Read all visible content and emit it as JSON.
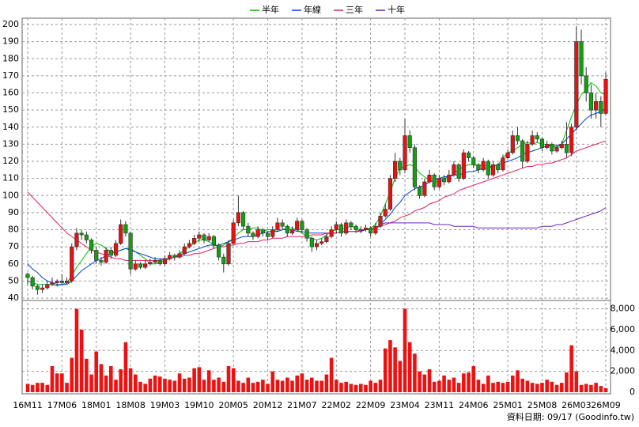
{
  "chart_data": {
    "type": "candlestick",
    "legend": "top",
    "grid": true,
    "up_color": "#e81010",
    "down_color": "#10a010",
    "ylim": [
      40,
      200
    ],
    "yticks": [
      40,
      50,
      60,
      70,
      80,
      90,
      100,
      110,
      120,
      130,
      140,
      150,
      160,
      170,
      180,
      190,
      200
    ],
    "categories": [
      "16M11",
      null,
      null,
      null,
      null,
      null,
      null,
      "17M06",
      null,
      null,
      null,
      null,
      null,
      null,
      "18M01",
      null,
      null,
      null,
      null,
      null,
      null,
      "18M08",
      null,
      null,
      null,
      null,
      null,
      null,
      "19M03",
      null,
      null,
      null,
      null,
      null,
      null,
      "19M10",
      null,
      null,
      null,
      null,
      null,
      null,
      "20M05",
      null,
      null,
      null,
      null,
      null,
      null,
      "20M12",
      null,
      null,
      null,
      null,
      null,
      null,
      "21M07",
      null,
      null,
      null,
      null,
      null,
      null,
      "22M02",
      null,
      null,
      null,
      null,
      null,
      null,
      "22M09",
      null,
      null,
      null,
      null,
      null,
      null,
      "23M04",
      null,
      null,
      null,
      null,
      null,
      null,
      "23M11",
      null,
      null,
      null,
      null,
      null,
      null,
      "24M06",
      null,
      null,
      null,
      null,
      null,
      null,
      "25M01",
      null,
      null,
      null,
      null,
      null,
      null,
      "25M08",
      null,
      null,
      null,
      null,
      null,
      null,
      "26M03",
      null,
      null,
      null,
      null,
      null,
      "26M09"
    ],
    "ohlc": [
      [
        54,
        55,
        48,
        52
      ],
      [
        52,
        53,
        45,
        47
      ],
      [
        47,
        48,
        42,
        45
      ],
      [
        45,
        48,
        43,
        46
      ],
      [
        46,
        50,
        45,
        48
      ],
      [
        48,
        52,
        47,
        49
      ],
      [
        49,
        51,
        47,
        50
      ],
      [
        50,
        54,
        48,
        49
      ],
      [
        49,
        52,
        48,
        50
      ],
      [
        50,
        72,
        49,
        70
      ],
      [
        70,
        81,
        68,
        78
      ],
      [
        78,
        80,
        74,
        77
      ],
      [
        77,
        79,
        72,
        74
      ],
      [
        74,
        75,
        66,
        68
      ],
      [
        68,
        70,
        60,
        62
      ],
      [
        62,
        64,
        59,
        61
      ],
      [
        61,
        70,
        60,
        68
      ],
      [
        68,
        70,
        63,
        65
      ],
      [
        65,
        74,
        64,
        72
      ],
      [
        72,
        86,
        71,
        83
      ],
      [
        83,
        85,
        76,
        78
      ],
      [
        78,
        79,
        54,
        57
      ],
      [
        57,
        62,
        56,
        60
      ],
      [
        60,
        61,
        57,
        58
      ],
      [
        58,
        62,
        57,
        60
      ],
      [
        60,
        63,
        59,
        61
      ],
      [
        61,
        64,
        60,
        62
      ],
      [
        62,
        63,
        59,
        60
      ],
      [
        60,
        65,
        59,
        63
      ],
      [
        63,
        67,
        62,
        65
      ],
      [
        65,
        66,
        62,
        64
      ],
      [
        64,
        68,
        63,
        66
      ],
      [
        66,
        72,
        65,
        70
      ],
      [
        70,
        74,
        69,
        72
      ],
      [
        72,
        77,
        71,
        75
      ],
      [
        75,
        79,
        73,
        77
      ],
      [
        77,
        78,
        72,
        74
      ],
      [
        74,
        78,
        73,
        76
      ],
      [
        76,
        77,
        69,
        71
      ],
      [
        71,
        72,
        62,
        64
      ],
      [
        64,
        66,
        55,
        60
      ],
      [
        60,
        74,
        59,
        72
      ],
      [
        72,
        86,
        71,
        84
      ],
      [
        84,
        100,
        82,
        90
      ],
      [
        90,
        91,
        80,
        82
      ],
      [
        82,
        84,
        76,
        78
      ],
      [
        78,
        79,
        74,
        76
      ],
      [
        76,
        82,
        75,
        80
      ],
      [
        80,
        81,
        76,
        78
      ],
      [
        78,
        79,
        74,
        76
      ],
      [
        76,
        82,
        75,
        80
      ],
      [
        80,
        87,
        79,
        84
      ],
      [
        84,
        86,
        80,
        82
      ],
      [
        82,
        83,
        76,
        78
      ],
      [
        78,
        82,
        77,
        80
      ],
      [
        80,
        87,
        79,
        85
      ],
      [
        85,
        86,
        78,
        80
      ],
      [
        80,
        81,
        73,
        75
      ],
      [
        75,
        76,
        67,
        70
      ],
      [
        70,
        74,
        68,
        72
      ],
      [
        72,
        75,
        71,
        73
      ],
      [
        73,
        78,
        72,
        76
      ],
      [
        76,
        82,
        75,
        80
      ],
      [
        80,
        85,
        78,
        83
      ],
      [
        83,
        84,
        76,
        78
      ],
      [
        78,
        86,
        77,
        84
      ],
      [
        84,
        85,
        80,
        82
      ],
      [
        82,
        83,
        78,
        80
      ],
      [
        80,
        82,
        78,
        80
      ],
      [
        80,
        83,
        79,
        81
      ],
      [
        81,
        82,
        76,
        78
      ],
      [
        78,
        84,
        77,
        82
      ],
      [
        82,
        90,
        81,
        88
      ],
      [
        88,
        95,
        87,
        92
      ],
      [
        92,
        112,
        91,
        110
      ],
      [
        110,
        125,
        108,
        120
      ],
      [
        120,
        122,
        112,
        115
      ],
      [
        115,
        145,
        113,
        135
      ],
      [
        135,
        138,
        125,
        128
      ],
      [
        128,
        130,
        103,
        105
      ],
      [
        105,
        106,
        98,
        100
      ],
      [
        100,
        110,
        99,
        108
      ],
      [
        108,
        115,
        107,
        112
      ],
      [
        112,
        113,
        103,
        105
      ],
      [
        105,
        112,
        104,
        110
      ],
      [
        110,
        112,
        106,
        108
      ],
      [
        108,
        115,
        107,
        112
      ],
      [
        112,
        120,
        111,
        118
      ],
      [
        118,
        119,
        108,
        110
      ],
      [
        110,
        127,
        109,
        125
      ],
      [
        125,
        126,
        120,
        122
      ],
      [
        122,
        123,
        116,
        118
      ],
      [
        118,
        119,
        113,
        115
      ],
      [
        115,
        122,
        114,
        120
      ],
      [
        120,
        121,
        110,
        112
      ],
      [
        112,
        120,
        111,
        118
      ],
      [
        118,
        119,
        113,
        115
      ],
      [
        115,
        124,
        114,
        122
      ],
      [
        122,
        127,
        121,
        125
      ],
      [
        125,
        138,
        124,
        135
      ],
      [
        135,
        140,
        130,
        132
      ],
      [
        132,
        133,
        116,
        120
      ],
      [
        120,
        132,
        119,
        130
      ],
      [
        130,
        138,
        129,
        135
      ],
      [
        135,
        137,
        131,
        133
      ],
      [
        133,
        134,
        126,
        128
      ],
      [
        128,
        132,
        127,
        130
      ],
      [
        130,
        131,
        124,
        126
      ],
      [
        126,
        130,
        125,
        128
      ],
      [
        128,
        132,
        127,
        130
      ],
      [
        130,
        143,
        122,
        125
      ],
      [
        125,
        142,
        123,
        140
      ],
      [
        140,
        199,
        138,
        190
      ],
      [
        190,
        197,
        165,
        170
      ],
      [
        170,
        175,
        155,
        160
      ],
      [
        160,
        165,
        145,
        150
      ],
      [
        150,
        160,
        145,
        155
      ],
      [
        155,
        158,
        140,
        148
      ],
      [
        148,
        172,
        147,
        168
      ]
    ],
    "series": [
      {
        "name": "半年",
        "color": "#00c000",
        "values": [
          50,
          49,
          48,
          48,
          48,
          48,
          47,
          48,
          49,
          53,
          58,
          62,
          66,
          70,
          72,
          71,
          69,
          67,
          67,
          68,
          69,
          69,
          67,
          65,
          63,
          60,
          60,
          61,
          62,
          63,
          64,
          66,
          68,
          70,
          72,
          74,
          74,
          73,
          71,
          70,
          71,
          73,
          75,
          78,
          80,
          80,
          81,
          81,
          79,
          80,
          80,
          79,
          80,
          81,
          81,
          80,
          78,
          76,
          75,
          74,
          75,
          77,
          79,
          80,
          80,
          81,
          82,
          81,
          80,
          80,
          81,
          83,
          88,
          95,
          102,
          110,
          116,
          117,
          118,
          117,
          113,
          111,
          109,
          108,
          108,
          110,
          111,
          113,
          115,
          117,
          118,
          118,
          117,
          118,
          117,
          117,
          118,
          122,
          125,
          126,
          128,
          130,
          131,
          130,
          131,
          130,
          130,
          129,
          128,
          130,
          138,
          146,
          153,
          159,
          162,
          166,
          164,
          160,
          159
        ]
      },
      {
        "name": "年線",
        "color": "#0040e0",
        "values": [
          60,
          57,
          55,
          52,
          50,
          49,
          48,
          48,
          48,
          50,
          53,
          56,
          58,
          60,
          62,
          63,
          65,
          66,
          67,
          68,
          69,
          68,
          67,
          66,
          65,
          64,
          63,
          63,
          63,
          63,
          64,
          65,
          66,
          67,
          68,
          69,
          70,
          71,
          71,
          71,
          72,
          73,
          74,
          75,
          76,
          76,
          76,
          77,
          78,
          79,
          79,
          79,
          80,
          80,
          80,
          79,
          79,
          78,
          78,
          78,
          78,
          78,
          78,
          78,
          79,
          79,
          79,
          79,
          79,
          80,
          80,
          81,
          83,
          86,
          89,
          93,
          96,
          100,
          102,
          104,
          105,
          106,
          108,
          109,
          110,
          111,
          111,
          112,
          112,
          113,
          114,
          114,
          115,
          116,
          116,
          117,
          118,
          119,
          120,
          121,
          122,
          124,
          125,
          126,
          127,
          128,
          129,
          129,
          129,
          130,
          133,
          136,
          139,
          142,
          145,
          147,
          148,
          149,
          151
        ]
      },
      {
        "name": "三年",
        "color": "#e0205a",
        "values": [
          102,
          99,
          96,
          93,
          90,
          87,
          84,
          81,
          78,
          76,
          74,
          72,
          70,
          68,
          67,
          66,
          65,
          64,
          63,
          63,
          62,
          62,
          62,
          62,
          62,
          62,
          62,
          62,
          63,
          63,
          64,
          64,
          65,
          65,
          66,
          66,
          67,
          68,
          69,
          70,
          70,
          71,
          71,
          72,
          72,
          73,
          73,
          73,
          74,
          74,
          75,
          75,
          75,
          76,
          76,
          76,
          76,
          76,
          77,
          77,
          77,
          78,
          78,
          78,
          79,
          79,
          79,
          79,
          80,
          80,
          80,
          81,
          82,
          83,
          84,
          85,
          87,
          88,
          89,
          91,
          92,
          93,
          95,
          96,
          97,
          99,
          100,
          101,
          103,
          104,
          105,
          106,
          107,
          108,
          109,
          110,
          111,
          112,
          113,
          114,
          115,
          116,
          117,
          117,
          118,
          118,
          119,
          119,
          120,
          121,
          122,
          124,
          126,
          127,
          128,
          129,
          130,
          131,
          132
        ]
      },
      {
        "name": "十年",
        "color": "#7020c0",
        "values": [
          null,
          null,
          null,
          null,
          null,
          null,
          null,
          null,
          null,
          null,
          null,
          null,
          null,
          null,
          null,
          null,
          null,
          null,
          null,
          null,
          null,
          null,
          null,
          null,
          null,
          null,
          null,
          null,
          null,
          null,
          null,
          null,
          null,
          null,
          null,
          null,
          null,
          null,
          null,
          null,
          null,
          null,
          null,
          null,
          null,
          null,
          null,
          null,
          null,
          null,
          null,
          null,
          null,
          null,
          null,
          null,
          null,
          null,
          null,
          null,
          null,
          null,
          null,
          null,
          null,
          null,
          null,
          null,
          null,
          null,
          null,
          null,
          83,
          84,
          84,
          84,
          84,
          84,
          84,
          84,
          84,
          84,
          84,
          83,
          83,
          83,
          83,
          82,
          82,
          82,
          82,
          82,
          81,
          81,
          81,
          81,
          81,
          81,
          81,
          81,
          81,
          81,
          81,
          81,
          81,
          82,
          82,
          82,
          83,
          83,
          84,
          85,
          86,
          87,
          88,
          89,
          90,
          91,
          93
        ]
      }
    ],
    "volume": {
      "color": "#ee1111",
      "ylim": [
        0,
        8800
      ],
      "yticks": [
        0,
        {
          "value": 2000,
          "label": "2,000"
        },
        {
          "value": 4000,
          "label": "4,000"
        },
        {
          "value": 6000,
          "label": "6,000"
        },
        {
          "value": 8000,
          "label": "8,000"
        }
      ],
      "values": [
        800,
        700,
        900,
        900,
        700,
        2500,
        1800,
        1800,
        900,
        3300,
        8000,
        6000,
        3200,
        1700,
        3900,
        2700,
        1600,
        2500,
        1200,
        2200,
        4800,
        2300,
        1700,
        1000,
        800,
        1300,
        1600,
        1500,
        1300,
        1200,
        1100,
        1800,
        1300,
        1400,
        2300,
        2400,
        1200,
        2100,
        1200,
        1400,
        1000,
        2500,
        2300,
        1100,
        900,
        1400,
        900,
        1000,
        1200,
        800,
        2000,
        1200,
        1100,
        1400,
        1100,
        1600,
        1800,
        1200,
        1400,
        1100,
        1100,
        1700,
        3300,
        1200,
        900,
        1000,
        800,
        700,
        800,
        700,
        1100,
        900,
        1200,
        4200,
        5000,
        4300,
        3000,
        8000,
        4800,
        3700,
        2000,
        1700,
        2200,
        1000,
        1100,
        1600,
        1200,
        1400,
        900,
        1800,
        1900,
        2500,
        1200,
        800,
        1600,
        900,
        1000,
        900,
        1000,
        1600,
        2100,
        1300,
        1100,
        900,
        800,
        900,
        1200,
        1000,
        700,
        900,
        1900,
        4500,
        2000,
        700,
        800,
        700,
        900,
        600,
        400
      ]
    },
    "footnote": "資料日期: 09/17 (Goodinfo.tw)"
  }
}
